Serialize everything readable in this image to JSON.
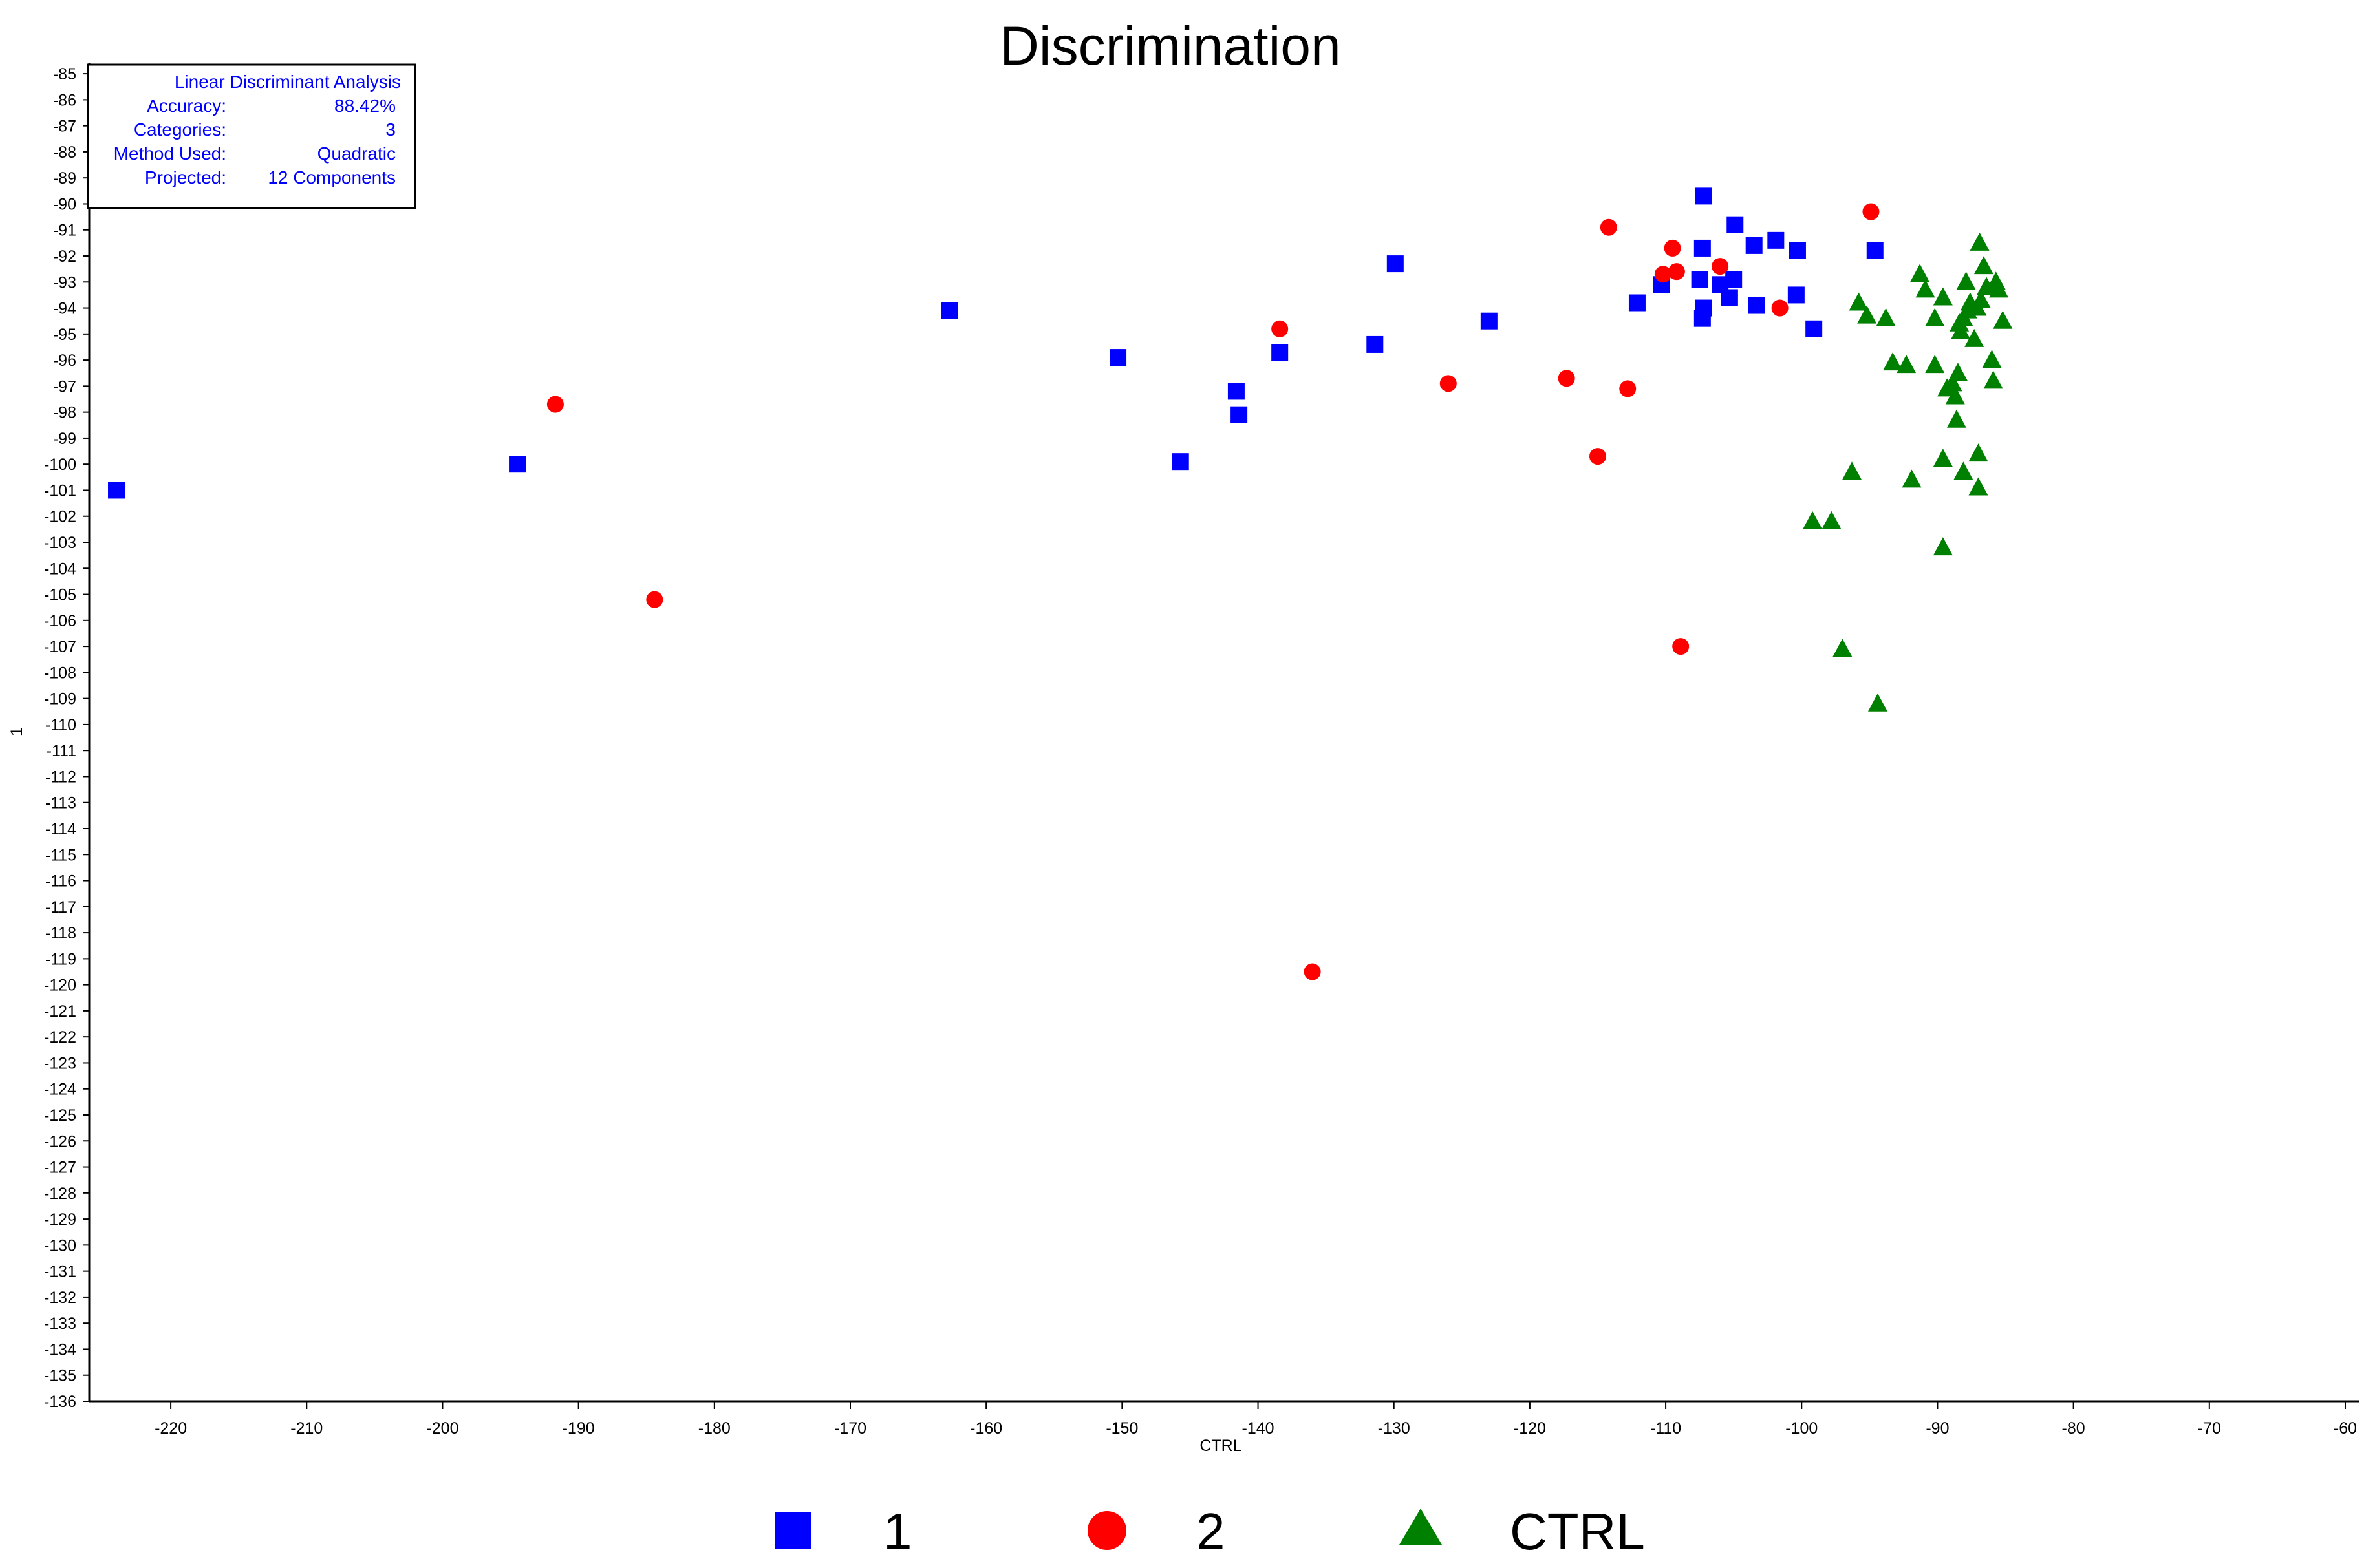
{
  "chart_data": {
    "type": "scatter",
    "title": "Discrimination",
    "xlabel": "CTRL",
    "ylabel": "1",
    "xlim": [
      -226,
      -59
    ],
    "ylim": [
      -136,
      -84.6
    ],
    "xticks": [
      -220,
      -210,
      -200,
      -190,
      -180,
      -170,
      -160,
      -150,
      -140,
      -130,
      -120,
      -110,
      -100,
      -90,
      -80,
      -70,
      -60
    ],
    "yticks": [
      -85,
      -86,
      -87,
      -88,
      -89,
      -90,
      -91,
      -92,
      -93,
      -94,
      -95,
      -96,
      -97,
      -98,
      -99,
      -100,
      -101,
      -102,
      -103,
      -104,
      -105,
      -106,
      -107,
      -108,
      -109,
      -110,
      -111,
      -112,
      -113,
      -114,
      -115,
      -116,
      -117,
      -118,
      -119,
      -120,
      -121,
      -122,
      -123,
      -124,
      -125,
      -126,
      -127,
      -128,
      -129,
      -130,
      -131,
      -132,
      -133,
      -134,
      -135,
      -136
    ],
    "grid": false,
    "legend_position": "bottom",
    "info_box": {
      "title": "Linear Discriminant Analysis",
      "rows": [
        {
          "label": "Accuracy:",
          "value": "88.42%"
        },
        {
          "label": "Categories:",
          "value": "3"
        },
        {
          "label": "Method Used:",
          "value": "Quadratic"
        },
        {
          "label": "Projected:",
          "value": "12 Components"
        }
      ]
    },
    "series": [
      {
        "name": "1",
        "marker": "square",
        "color": "#0000ff",
        "points": [
          [
            -224,
            -101.0
          ],
          [
            -194.5,
            -100.0
          ],
          [
            -162.7,
            -94.1
          ],
          [
            -150.3,
            -95.9
          ],
          [
            -145.7,
            -99.9
          ],
          [
            -141.6,
            -97.2
          ],
          [
            -141.4,
            -98.1
          ],
          [
            -138.4,
            -95.7
          ],
          [
            -131.4,
            -95.4
          ],
          [
            -129.9,
            -92.3
          ],
          [
            -123.0,
            -94.5
          ],
          [
            -112.1,
            -93.8
          ],
          [
            -110.3,
            -93.1
          ],
          [
            -107.5,
            -92.9
          ],
          [
            -107.3,
            -91.7
          ],
          [
            -107.2,
            -89.7
          ],
          [
            -107.2,
            -94.0
          ],
          [
            -107.3,
            -94.4
          ],
          [
            -106.0,
            -93.1
          ],
          [
            -105.3,
            -93.6
          ],
          [
            -105.0,
            -92.9
          ],
          [
            -104.9,
            -90.8
          ],
          [
            -103.5,
            -91.6
          ],
          [
            -103.3,
            -93.9
          ],
          [
            -101.9,
            -91.4
          ],
          [
            -100.4,
            -93.5
          ],
          [
            -100.3,
            -91.8
          ],
          [
            -99.1,
            -94.8
          ],
          [
            -94.6,
            -91.8
          ]
        ]
      },
      {
        "name": "2",
        "marker": "circle",
        "color": "#ff0000",
        "points": [
          [
            -191.7,
            -97.7
          ],
          [
            -184.4,
            -105.2
          ],
          [
            -138.4,
            -94.8
          ],
          [
            -136.0,
            -119.5
          ],
          [
            -126.0,
            -96.9
          ],
          [
            -117.3,
            -96.7
          ],
          [
            -115.0,
            -99.7
          ],
          [
            -114.2,
            -90.9
          ],
          [
            -112.8,
            -97.1
          ],
          [
            -110.2,
            -92.7
          ],
          [
            -109.5,
            -91.7
          ],
          [
            -109.2,
            -92.6
          ],
          [
            -108.9,
            -107.0
          ],
          [
            -106.0,
            -92.4
          ],
          [
            -101.6,
            -94.0
          ],
          [
            -94.9,
            -90.3
          ]
        ]
      },
      {
        "name": "CTRL",
        "marker": "triangle",
        "color": "#008000",
        "points": [
          [
            -99.2,
            -102.2
          ],
          [
            -97.8,
            -102.2
          ],
          [
            -97.0,
            -107.1
          ],
          [
            -96.3,
            -100.3
          ],
          [
            -95.8,
            -93.8
          ],
          [
            -95.2,
            -94.3
          ],
          [
            -94.4,
            -109.2
          ],
          [
            -93.8,
            -94.4
          ],
          [
            -93.3,
            -96.1
          ],
          [
            -92.3,
            -96.2
          ],
          [
            -91.9,
            -100.6
          ],
          [
            -91.3,
            -92.7
          ],
          [
            -90.9,
            -93.3
          ],
          [
            -90.2,
            -94.4
          ],
          [
            -90.2,
            -96.2
          ],
          [
            -89.6,
            -93.6
          ],
          [
            -89.6,
            -99.8
          ],
          [
            -89.6,
            -103.2
          ],
          [
            -89.3,
            -97.1
          ],
          [
            -88.9,
            -96.9
          ],
          [
            -88.7,
            -97.4
          ],
          [
            -88.6,
            -98.3
          ],
          [
            -88.5,
            -96.5
          ],
          [
            -88.4,
            -94.6
          ],
          [
            -88.3,
            -94.9
          ],
          [
            -88.1,
            -94.4
          ],
          [
            -88.1,
            -100.3
          ],
          [
            -87.9,
            -93.0
          ],
          [
            -87.8,
            -94.1
          ],
          [
            -87.6,
            -93.8
          ],
          [
            -87.3,
            -95.2
          ],
          [
            -87.1,
            -94.0
          ],
          [
            -87.0,
            -99.6
          ],
          [
            -87.0,
            -100.9
          ],
          [
            -86.9,
            -91.5
          ],
          [
            -86.8,
            -93.7
          ],
          [
            -86.6,
            -92.4
          ],
          [
            -86.4,
            -93.2
          ],
          [
            -86.0,
            -96.0
          ],
          [
            -85.9,
            -96.8
          ],
          [
            -85.7,
            -93.0
          ],
          [
            -85.5,
            -93.3
          ],
          [
            -85.2,
            -94.5
          ]
        ]
      }
    ]
  }
}
